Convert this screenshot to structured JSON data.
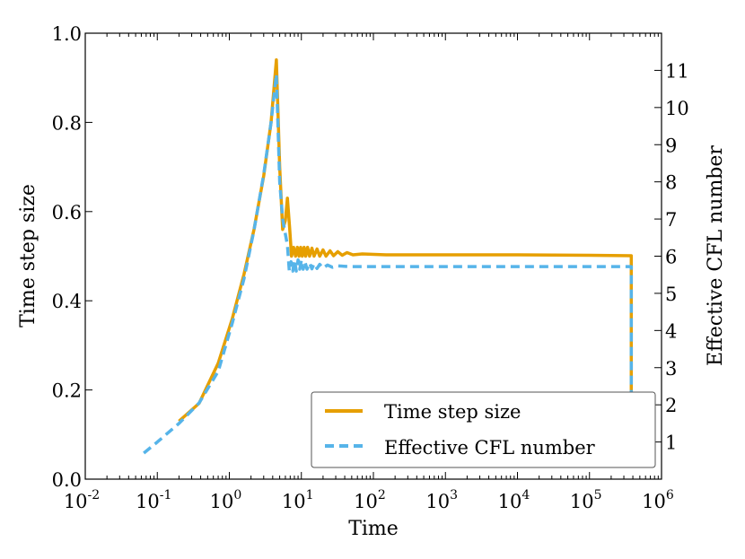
{
  "chart_data": {
    "type": "line",
    "xlabel": "Time",
    "ylabel": "Time step size",
    "y2label": "Effective CFL number",
    "xscale": "log",
    "xlim": [
      0.01,
      1000000
    ],
    "ylim": [
      0.0,
      1.0
    ],
    "y2lim": [
      0.0,
      12.0
    ],
    "x_ticks": [
      {
        "value": 0.01,
        "base": "10",
        "exp": "-2"
      },
      {
        "value": 0.1,
        "base": "10",
        "exp": "-1"
      },
      {
        "value": 1,
        "base": "10",
        "exp": "0"
      },
      {
        "value": 10,
        "base": "10",
        "exp": "1"
      },
      {
        "value": 100,
        "base": "10",
        "exp": "2"
      },
      {
        "value": 1000,
        "base": "10",
        "exp": "3"
      },
      {
        "value": 10000,
        "base": "10",
        "exp": "4"
      },
      {
        "value": 100000,
        "base": "10",
        "exp": "5"
      },
      {
        "value": 1000000,
        "base": "10",
        "exp": "6"
      }
    ],
    "y_ticks": [
      {
        "value": 0.0,
        "label": "0.0"
      },
      {
        "value": 0.2,
        "label": "0.2"
      },
      {
        "value": 0.4,
        "label": "0.4"
      },
      {
        "value": 0.6,
        "label": "0.6"
      },
      {
        "value": 0.8,
        "label": "0.8"
      },
      {
        "value": 1.0,
        "label": "1.0"
      }
    ],
    "y2_ticks": [
      {
        "value": 1,
        "label": "1"
      },
      {
        "value": 2,
        "label": "2"
      },
      {
        "value": 3,
        "label": "3"
      },
      {
        "value": 4,
        "label": "4"
      },
      {
        "value": 5,
        "label": "5"
      },
      {
        "value": 6,
        "label": "6"
      },
      {
        "value": 7,
        "label": "7"
      },
      {
        "value": 8,
        "label": "8"
      },
      {
        "value": 9,
        "label": "9"
      },
      {
        "value": 10,
        "label": "10"
      },
      {
        "value": 11,
        "label": "11"
      }
    ],
    "legend_position": "lower-right",
    "series": [
      {
        "name": "Time step size",
        "axis": "left",
        "color": "#E69F00",
        "style": "solid",
        "points": [
          [
            0.2,
            0.13
          ],
          [
            0.38,
            0.17
          ],
          [
            0.7,
            0.26
          ],
          [
            1.1,
            0.36
          ],
          [
            1.6,
            0.46
          ],
          [
            2.2,
            0.56
          ],
          [
            3.0,
            0.68
          ],
          [
            3.8,
            0.8
          ],
          [
            4.5,
            0.94
          ],
          [
            5.0,
            0.7
          ],
          [
            5.5,
            0.56
          ],
          [
            6.0,
            0.58
          ],
          [
            6.4,
            0.63
          ],
          [
            6.9,
            0.56
          ],
          [
            7.3,
            0.5
          ],
          [
            7.8,
            0.52
          ],
          [
            8.3,
            0.5
          ],
          [
            8.8,
            0.52
          ],
          [
            9.3,
            0.5
          ],
          [
            9.8,
            0.52
          ],
          [
            10.3,
            0.5
          ],
          [
            10.9,
            0.52
          ],
          [
            11.5,
            0.5
          ],
          [
            12.2,
            0.52
          ],
          [
            13,
            0.5
          ],
          [
            14,
            0.518
          ],
          [
            15,
            0.5
          ],
          [
            16.5,
            0.516
          ],
          [
            18,
            0.5
          ],
          [
            20,
            0.514
          ],
          [
            22,
            0.5
          ],
          [
            25,
            0.512
          ],
          [
            28,
            0.501
          ],
          [
            32,
            0.51
          ],
          [
            37,
            0.502
          ],
          [
            43,
            0.508
          ],
          [
            52,
            0.503
          ],
          [
            70,
            0.505
          ],
          [
            150,
            0.503
          ],
          [
            1000,
            0.503
          ],
          [
            10000,
            0.503
          ],
          [
            100000,
            0.502
          ],
          [
            380000,
            0.501
          ],
          [
            380000,
            0.13
          ]
        ]
      },
      {
        "name": "Effective CFL number",
        "axis": "right",
        "color": "#56B4E9",
        "style": "dashed",
        "points": [
          [
            0.065,
            0.7
          ],
          [
            0.1,
            1.0
          ],
          [
            0.2,
            1.5
          ],
          [
            0.38,
            2.05
          ],
          [
            0.7,
            2.9
          ],
          [
            1.1,
            4.2
          ],
          [
            1.6,
            5.4
          ],
          [
            2.2,
            6.7
          ],
          [
            3.0,
            8.2
          ],
          [
            3.8,
            9.6
          ],
          [
            4.5,
            10.9
          ],
          [
            5.0,
            8.0
          ],
          [
            5.5,
            7.0
          ],
          [
            6.0,
            6.6
          ],
          [
            6.4,
            6.3
          ],
          [
            6.8,
            5.6
          ],
          [
            7.2,
            5.85
          ],
          [
            7.6,
            5.6
          ],
          [
            8.0,
            5.9
          ],
          [
            8.5,
            5.6
          ],
          [
            9.0,
            5.9
          ],
          [
            9.5,
            5.65
          ],
          [
            10,
            5.9
          ],
          [
            10.6,
            5.65
          ],
          [
            11.2,
            5.85
          ],
          [
            12,
            5.65
          ],
          [
            13,
            5.82
          ],
          [
            14,
            5.66
          ],
          [
            15,
            5.8
          ],
          [
            16.5,
            5.67
          ],
          [
            18,
            5.78
          ],
          [
            20,
            5.68
          ],
          [
            23,
            5.76
          ],
          [
            27,
            5.7
          ],
          [
            32,
            5.74
          ],
          [
            45,
            5.72
          ],
          [
            100,
            5.72
          ],
          [
            1000,
            5.72
          ],
          [
            10000,
            5.72
          ],
          [
            100000,
            5.72
          ],
          [
            380000,
            5.72
          ],
          [
            380000,
            1.4
          ]
        ]
      }
    ]
  }
}
